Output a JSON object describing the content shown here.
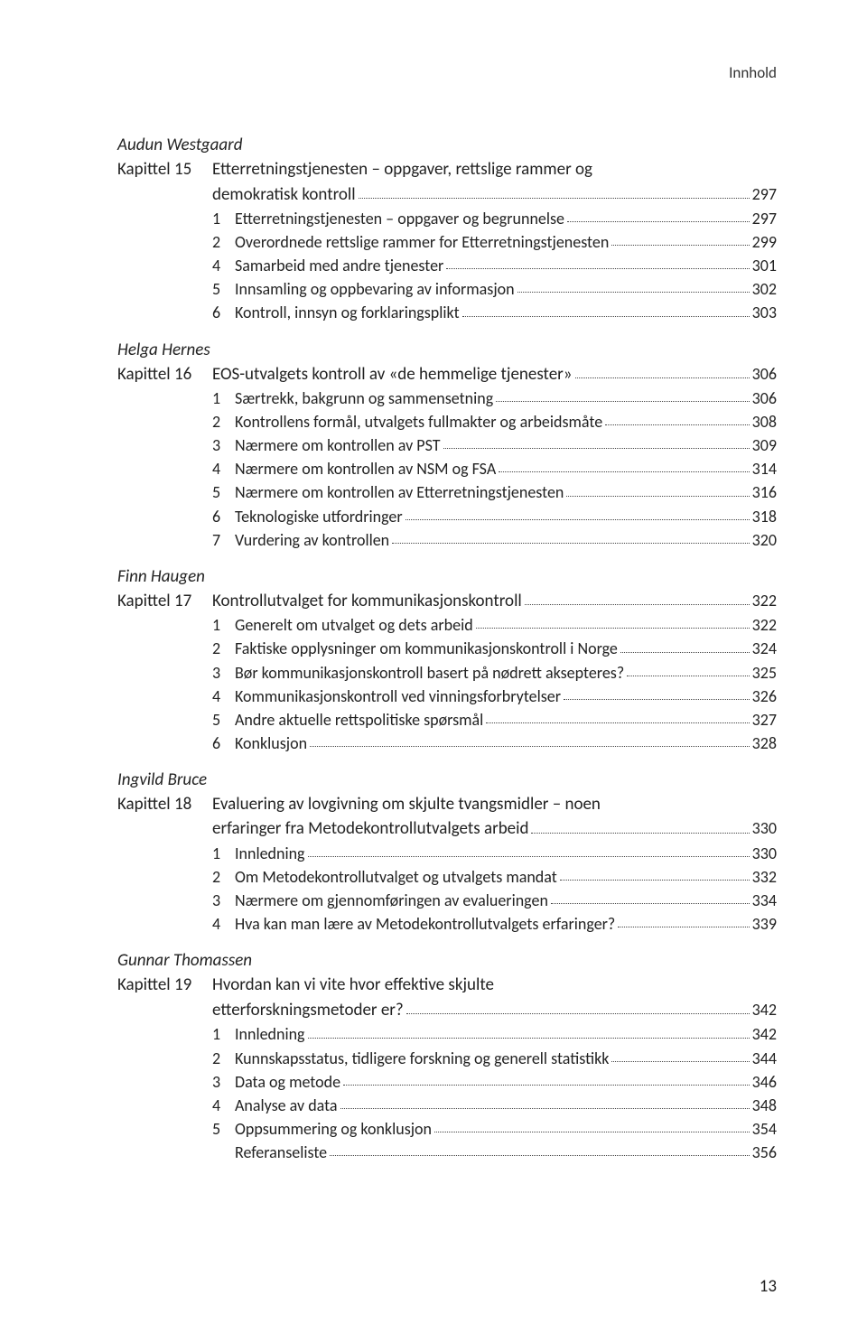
{
  "running_header": "Innhold",
  "page_number": "13",
  "chapters": [
    {
      "author": "Audun Westgaard",
      "chapter_label": "Kapittel 15",
      "title_lines": [
        "Etterretningstjenesten – oppgaver, rettslige rammer og",
        "demokratisk kontroll"
      ],
      "title_page": "297",
      "subs": [
        {
          "n": "1",
          "t": "Etterretningstjenesten – oppgaver og begrunnelse",
          "p": "297"
        },
        {
          "n": "2",
          "t": "Overordnede rettslige rammer for Etterretningstjenesten",
          "p": "299"
        },
        {
          "n": "4",
          "t": "Samarbeid med andre tjenester",
          "p": "301"
        },
        {
          "n": "5",
          "t": "Innsamling og oppbevaring av informasjon",
          "p": "302"
        },
        {
          "n": "6",
          "t": "Kontroll, innsyn og forklaringsplikt",
          "p": "303"
        }
      ]
    },
    {
      "author": "Helga Hernes",
      "chapter_label": "Kapittel 16",
      "title_lines": [
        "EOS-utvalgets kontroll av «de hemmelige tjenester»"
      ],
      "title_page": "306",
      "subs": [
        {
          "n": "1",
          "t": "Særtrekk, bakgrunn og sammensetning",
          "p": "306"
        },
        {
          "n": "2",
          "t": "Kontrollens formål, utvalgets fullmakter og arbeidsmåte",
          "p": "308"
        },
        {
          "n": "3",
          "t": "Nærmere om kontrollen av PST",
          "p": "309"
        },
        {
          "n": "4",
          "t": "Nærmere om kontrollen av NSM og FSA",
          "p": "314"
        },
        {
          "n": "5",
          "t": "Nærmere om kontrollen av Etterretningstjenesten",
          "p": "316"
        },
        {
          "n": "6",
          "t": "Teknologiske utfordringer",
          "p": "318"
        },
        {
          "n": "7",
          "t": "Vurdering av kontrollen",
          "p": "320"
        }
      ]
    },
    {
      "author": "Finn Haugen",
      "chapter_label": "Kapittel 17",
      "title_lines": [
        "Kontrollutvalget for kommunikasjonskontroll"
      ],
      "title_page": "322",
      "subs": [
        {
          "n": "1",
          "t": "Generelt om utvalget og dets arbeid",
          "p": "322"
        },
        {
          "n": "2",
          "t": "Faktiske opplysninger om kommunikasjonskontroll i Norge",
          "p": "324"
        },
        {
          "n": "3",
          "t": "Bør kommunikasjonskontroll basert på nødrett aksepteres?",
          "p": "325"
        },
        {
          "n": "4",
          "t": "Kommunikasjonskontroll ved vinningsforbrytelser",
          "p": "326"
        },
        {
          "n": "5",
          "t": "Andre aktuelle rettspolitiske spørsmål",
          "p": "327"
        },
        {
          "n": "6",
          "t": "Konklusjon",
          "p": "328"
        }
      ]
    },
    {
      "author": "Ingvild Bruce",
      "chapter_label": "Kapittel 18",
      "title_lines": [
        "Evaluering av lovgivning om skjulte tvangsmidler – noen",
        "erfaringer fra Metodekontrollutvalgets arbeid"
      ],
      "title_page": "330",
      "subs": [
        {
          "n": "1",
          "t": "Innledning",
          "p": "330"
        },
        {
          "n": "2",
          "t": "Om Metodekontrollutvalget og utvalgets mandat",
          "p": "332"
        },
        {
          "n": "3",
          "t": "Nærmere om gjennomføringen av evalueringen",
          "p": "334"
        },
        {
          "n": "4",
          "t": "Hva kan man lære av Metodekontrollutvalgets erfaringer?",
          "p": "339"
        }
      ]
    },
    {
      "author": "Gunnar Thomassen",
      "chapter_label": "Kapittel 19",
      "title_lines": [
        "Hvordan kan vi vite hvor effektive skjulte",
        "etterforskningsmetoder er?"
      ],
      "title_page": "342",
      "subs": [
        {
          "n": "1",
          "t": "Innledning",
          "p": "342"
        },
        {
          "n": "2",
          "t": "Kunnskapsstatus, tidligere forskning og generell statistikk",
          "p": "344"
        },
        {
          "n": "3",
          "t": "Data og metode",
          "p": "346"
        },
        {
          "n": "4",
          "t": "Analyse av data",
          "p": "348"
        },
        {
          "n": "5",
          "t": "Oppsummering og konklusjon",
          "p": "354"
        },
        {
          "n": "",
          "t": "Referanseliste",
          "p": "356"
        }
      ]
    }
  ]
}
